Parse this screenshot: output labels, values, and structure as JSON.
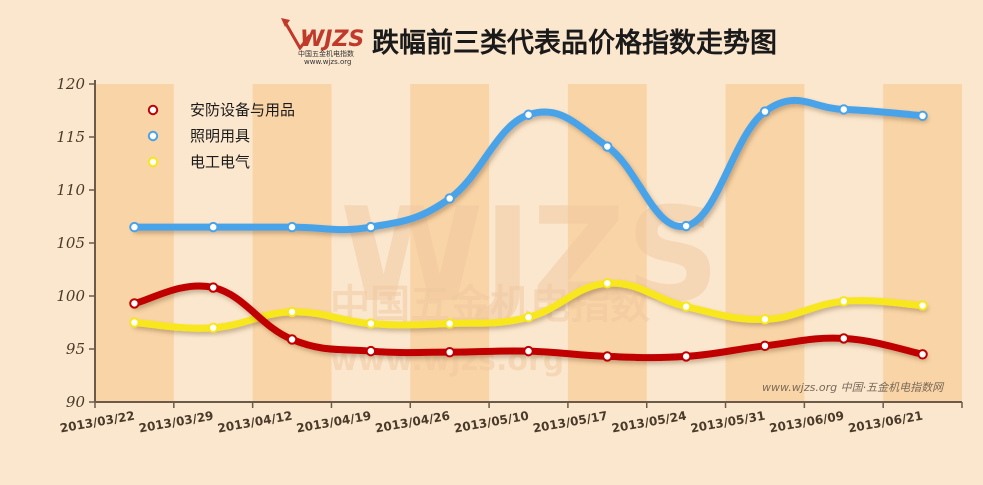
{
  "logo": {
    "name": "WJZS",
    "subtitle": "中国五金机电指数",
    "url": "www.wjzs.org"
  },
  "footer": "www.wjzs.org 中国·五金机电指数网",
  "watermark": {
    "brand": "WJZS",
    "text": "中国五金机电指数",
    "url": "www.wjzs.org"
  },
  "colors": {
    "background": "#fbe7cd",
    "stripe": "#f9d4a6",
    "axis": "#6b5a4a",
    "series": [
      "#c00000",
      "#4aa3e8",
      "#f7e71a"
    ]
  },
  "chart_data": {
    "type": "line",
    "title": "跌幅前三类代表品价格指数走势图",
    "x": [
      "2013/03/22",
      "2013/03/29",
      "2013/04/12",
      "2013/04/19",
      "2013/04/26",
      "2013/05/10",
      "2013/05/17",
      "2013/05/24",
      "2013/05/31",
      "2013/06/09",
      "2013/06/21"
    ],
    "ylim": [
      90,
      120
    ],
    "yticks": [
      90,
      95,
      100,
      105,
      110,
      115,
      120
    ],
    "legend_position": "top-left",
    "series": [
      {
        "name": "安防设备与用品",
        "values": [
          99.3,
          100.8,
          95.9,
          94.8,
          94.7,
          94.8,
          94.3,
          94.3,
          95.3,
          96.0,
          94.5
        ]
      },
      {
        "name": "照明用具",
        "values": [
          106.5,
          106.5,
          106.5,
          106.5,
          109.2,
          117.1,
          114.1,
          106.6,
          117.4,
          117.6,
          117.0
        ]
      },
      {
        "name": "电工电气",
        "values": [
          97.5,
          97.0,
          98.5,
          97.4,
          97.4,
          98.0,
          101.2,
          99.0,
          97.8,
          99.5,
          99.1
        ]
      }
    ]
  }
}
